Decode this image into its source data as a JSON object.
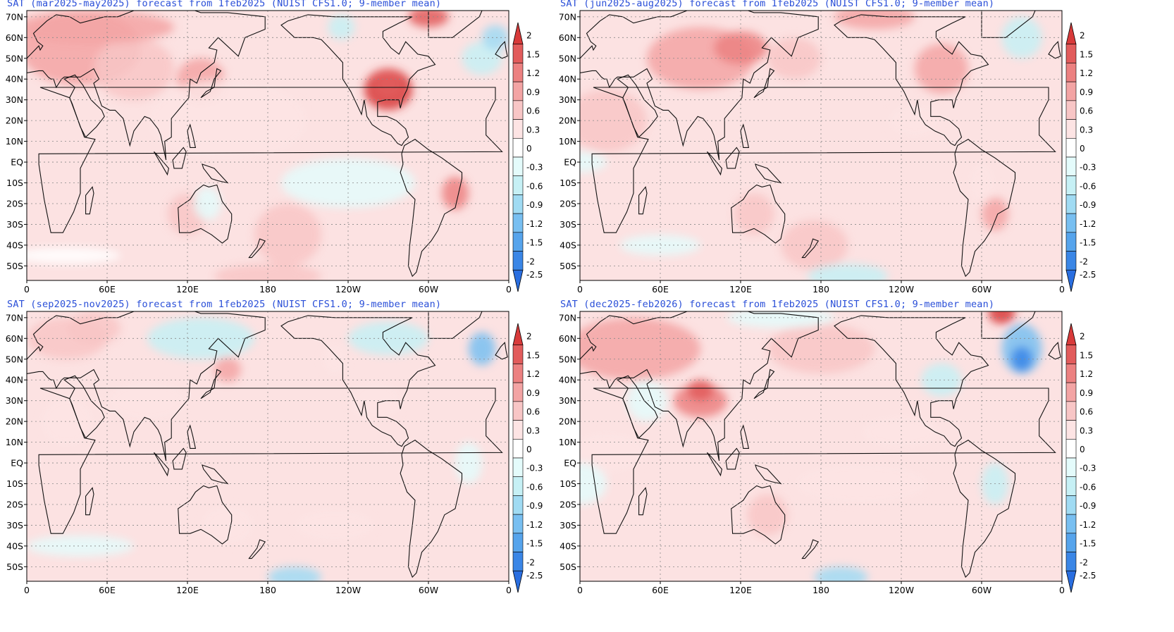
{
  "panels": [
    {
      "title": "SAT (mar2025-may2025) forecast from 1feb2025 (NUIST CFS1.0; 9-member mean)"
    },
    {
      "title": "SAT (jun2025-aug2025) forecast from 1feb2025 (NUIST CFS1.0; 9-member mean)"
    },
    {
      "title": "SAT (sep2025-nov2025) forecast from 1feb2025 (NUIST CFS1.0; 9-member mean)"
    },
    {
      "title": "SAT (dec2025-feb2026) forecast from 1feb2025 (NUIST CFS1.0; 9-member mean)"
    }
  ],
  "map": {
    "lat_labels": [
      "70N",
      "60N",
      "50N",
      "40N",
      "30N",
      "20N",
      "10N",
      "EQ",
      "10S",
      "20S",
      "30S",
      "40S",
      "50S"
    ],
    "lat_values": [
      70,
      60,
      50,
      40,
      30,
      20,
      10,
      0,
      -10,
      -20,
      -30,
      -40,
      -50
    ],
    "lat_range": [
      -57,
      73
    ],
    "lon_labels": [
      "0",
      "60E",
      "120E",
      "180",
      "120W",
      "60W",
      "0"
    ],
    "lon_values": [
      0,
      60,
      120,
      180,
      240,
      300,
      360
    ],
    "lon_range": [
      0,
      360
    ]
  },
  "colorbar": {
    "labels": [
      "2",
      "1.5",
      "1.2",
      "0.9",
      "0.6",
      "0.3",
      "0",
      "-0.3",
      "-0.6",
      "-0.9",
      "-1.2",
      "-1.5",
      "-2",
      "-2.5"
    ],
    "colors": [
      "#d83a3a",
      "#e25c5c",
      "#ec8181",
      "#f3a4a4",
      "#f8c6c6",
      "#fde4e4",
      "#ffffff",
      "#e4fbfb",
      "#c6f0f5",
      "#a0dbf3",
      "#78bff1",
      "#56a4ec",
      "#3a86e6",
      "#2a6ee0"
    ]
  }
}
